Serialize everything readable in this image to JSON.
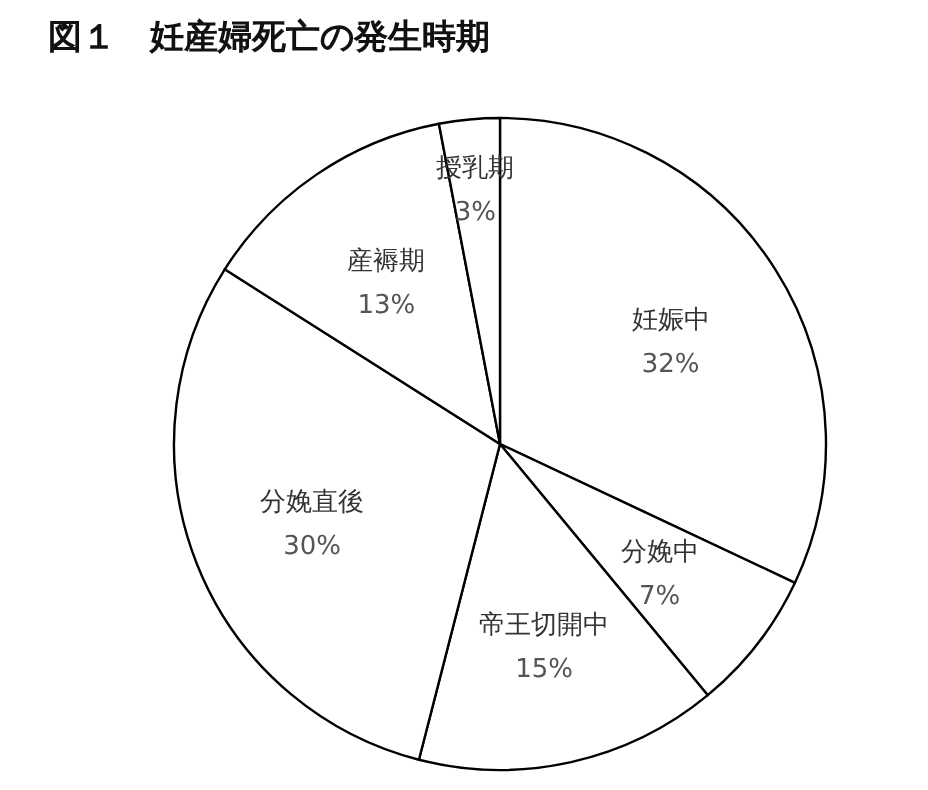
{
  "chart_data": {
    "type": "pie",
    "title": "図１　妊産婦死亡の発生時期",
    "categories": [
      "妊娠中",
      "分娩中",
      "帝王切開中",
      "分娩直後",
      "産褥期",
      "授乳期"
    ],
    "values": [
      32,
      7,
      15,
      30,
      13,
      3
    ],
    "colors": [
      "#ffffff",
      "#ffffff",
      "#ffffff",
      "#ffffff",
      "#ffffff",
      "#ffffff"
    ],
    "value_labels": [
      "32%",
      "7%",
      "15%",
      "30%",
      "13%",
      "3%"
    ]
  }
}
